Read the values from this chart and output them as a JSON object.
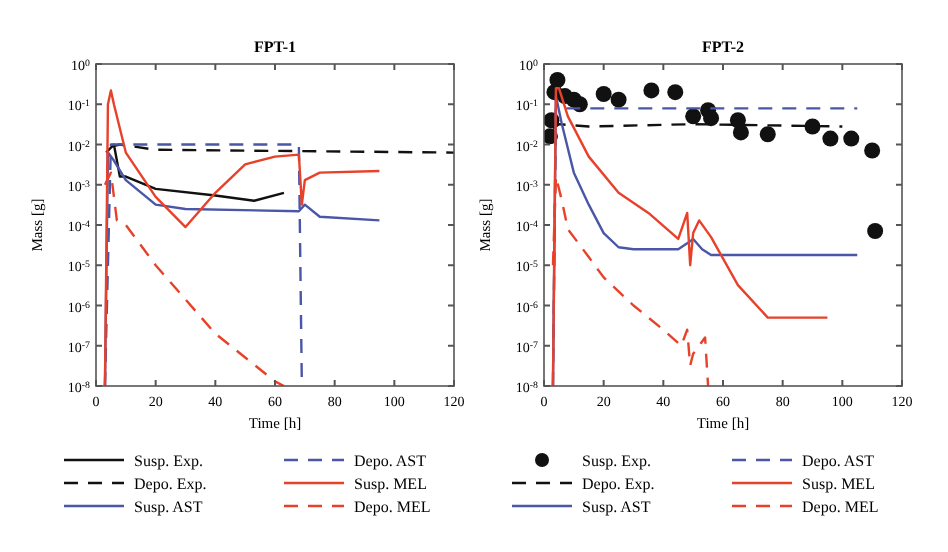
{
  "chart_data": [
    {
      "type": "line",
      "title": "FPT-1",
      "xlabel": "Time [h]",
      "ylabel": "Mass [g]",
      "log": true,
      "grid": false,
      "legend": "bottom",
      "xlim": [
        0,
        120
      ],
      "xticks": [
        0,
        20,
        40,
        60,
        80,
        100,
        120
      ],
      "ylim": [
        1e-08,
        1
      ],
      "yticks": [
        {
          "value": 1e-08,
          "label": "10$^{-8}$"
        },
        {
          "value": 1e-07,
          "label": "10$^{-7}$"
        },
        {
          "value": 1e-06,
          "label": "10$^{-6}$"
        },
        {
          "value": 1e-05,
          "label": "10$^{-5}$"
        },
        {
          "value": 0.0001,
          "label": "10$^{-4}$"
        },
        {
          "value": 0.001,
          "label": "10$^{-3}$"
        },
        {
          "value": 0.01,
          "label": "10$^{-2}$"
        },
        {
          "value": 0.1,
          "label": "10$^{-1}$"
        },
        {
          "value": 1,
          "label": "10$^{0}$"
        }
      ],
      "series": [
        {
          "name": "Susp. Exp.",
          "color": "#111111",
          "line_style": "solid",
          "x": [
            3.4,
            6,
            8,
            10,
            20,
            40,
            53,
            63
          ],
          "values": [
            0.0063,
            0.01,
            0.0016,
            0.0016,
            0.00079,
            0.00054,
            0.0004,
            0.00063
          ]
        },
        {
          "name": "Depo. Exp.",
          "color": "#111111",
          "line_style": "dashed",
          "x": [
            5,
            8,
            20,
            120
          ],
          "values": [
            0.0089,
            0.01,
            0.0074,
            0.0063
          ]
        },
        {
          "name": "Susp. AST",
          "color": "#4a56a6",
          "line_style": "solid",
          "x": [
            3,
            4,
            6,
            10,
            20,
            30,
            68,
            70,
            75,
            95
          ],
          "values": [
            1e-08,
            0.0063,
            0.004,
            0.0013,
            0.00032,
            0.00025,
            0.00022,
            0.00032,
            0.00016,
            0.00013
          ]
        },
        {
          "name": "Depo. AST",
          "color": "#4a56a6",
          "line_style": "dashed",
          "x": [
            3,
            5,
            68,
            69
          ],
          "values": [
            1e-08,
            0.01,
            0.01,
            1e-08
          ]
        },
        {
          "name": "Susp. MEL",
          "color": "#e8412a",
          "line_style": "solid",
          "x": [
            3,
            4,
            5,
            6,
            10,
            20,
            30,
            40,
            50,
            60,
            68,
            69,
            70,
            75,
            95
          ],
          "values": [
            1e-08,
            0.1,
            0.22,
            0.1,
            0.0063,
            0.0005,
            8.9e-05,
            0.00063,
            0.0032,
            0.005,
            0.0056,
            0.00032,
            0.0013,
            0.002,
            0.0022
          ]
        },
        {
          "name": "Depo. MEL",
          "color": "#e8412a",
          "line_style": "dashed",
          "x": [
            3,
            5,
            7,
            10,
            20,
            40,
            60,
            63
          ],
          "values": [
            0.001,
            0.002,
            0.00013,
            0.0001,
            1e-05,
            2e-07,
            1.3e-08,
            1e-08
          ]
        }
      ]
    },
    {
      "type": "line",
      "title": "FPT-2",
      "xlabel": "Time [h]",
      "ylabel": "Mass [g]",
      "log": true,
      "grid": false,
      "legend": "bottom",
      "xlim": [
        0,
        120
      ],
      "xticks": [
        0,
        20,
        40,
        60,
        80,
        100,
        120
      ],
      "ylim": [
        1e-08,
        1
      ],
      "yticks": [
        {
          "value": 1e-08,
          "label": "10$^{-8}$"
        },
        {
          "value": 1e-07,
          "label": "10$^{-7}$"
        },
        {
          "value": 1e-06,
          "label": "10$^{-6}$"
        },
        {
          "value": 1e-05,
          "label": "10$^{-5}$"
        },
        {
          "value": 0.0001,
          "label": "10$^{-4}$"
        },
        {
          "value": 0.001,
          "label": "10$^{-3}$"
        },
        {
          "value": 0.01,
          "label": "10$^{-2}$"
        },
        {
          "value": 0.1,
          "label": "10$^{-1}$"
        },
        {
          "value": 1,
          "label": "10$^{0}$"
        }
      ],
      "series": [
        {
          "name": "Susp. Exp.",
          "color": "#111111",
          "type": "scatter",
          "marker": "circle",
          "x": [
            2,
            2.5,
            3.5,
            4.5,
            6,
            7,
            8,
            10,
            12,
            20,
            25,
            36,
            44,
            50,
            55,
            56,
            65,
            66,
            75,
            90,
            96,
            103,
            110,
            111
          ],
          "values": [
            0.016,
            0.04,
            0.2,
            0.4,
            null,
            0.16,
            null,
            0.13,
            0.1,
            0.18,
            0.13,
            0.22,
            0.2,
            0.05,
            0.071,
            0.045,
            0.04,
            0.02,
            0.018,
            0.028,
            0.014,
            0.014,
            0.0071,
            7.1e-05
          ]
        },
        {
          "name": "Depo. Exp.",
          "color": "#111111",
          "line_style": "dashed",
          "x": [
            3,
            5,
            15,
            50,
            100
          ],
          "values": [
            0.025,
            0.032,
            0.028,
            0.032,
            0.028
          ]
        },
        {
          "name": "Susp. AST",
          "color": "#4a56a6",
          "line_style": "solid",
          "x": [
            3,
            4,
            6,
            10,
            15,
            20,
            25,
            30,
            45,
            48,
            50,
            53,
            56,
            105
          ],
          "values": [
            1e-08,
            0.16,
            0.032,
            0.002,
            0.00032,
            6.3e-05,
            2.8e-05,
            2.5e-05,
            2.5e-05,
            3.5e-05,
            4.5e-05,
            2.5e-05,
            1.8e-05,
            1.8e-05
          ]
        },
        {
          "name": "Depo. AST",
          "color": "#4a56a6",
          "line_style": "dashed",
          "x": [
            3,
            4,
            105
          ],
          "values": [
            1e-08,
            0.079,
            0.079
          ]
        },
        {
          "name": "Susp. MEL",
          "color": "#e8412a",
          "line_style": "solid",
          "x": [
            3,
            4,
            5,
            8,
            15,
            25,
            35,
            45,
            48,
            49,
            50,
            52,
            56,
            65,
            75,
            80,
            95
          ],
          "values": [
            1e-08,
            0.25,
            0.25,
            0.05,
            0.005,
            0.00063,
            0.0002,
            4.5e-05,
            0.0002,
            1e-05,
            6.3e-05,
            0.00013,
            5e-05,
            3.2e-06,
            5e-07,
            5e-07,
            5e-07
          ]
        },
        {
          "name": "Depo. MEL",
          "color": "#e8412a",
          "line_style": "dashed",
          "x": [
            3,
            4,
            6,
            8,
            10,
            15,
            20,
            30,
            40,
            46,
            48,
            49,
            50,
            54,
            55
          ],
          "values": [
            1e-05,
            0.0016,
            0.0004,
            7.9e-05,
            5e-05,
            1.6e-05,
            5e-06,
            1e-06,
            2.5e-07,
            1e-07,
            2.5e-07,
            3.2e-08,
            6.3e-08,
            1.6e-07,
            1e-08
          ]
        }
      ]
    }
  ]
}
